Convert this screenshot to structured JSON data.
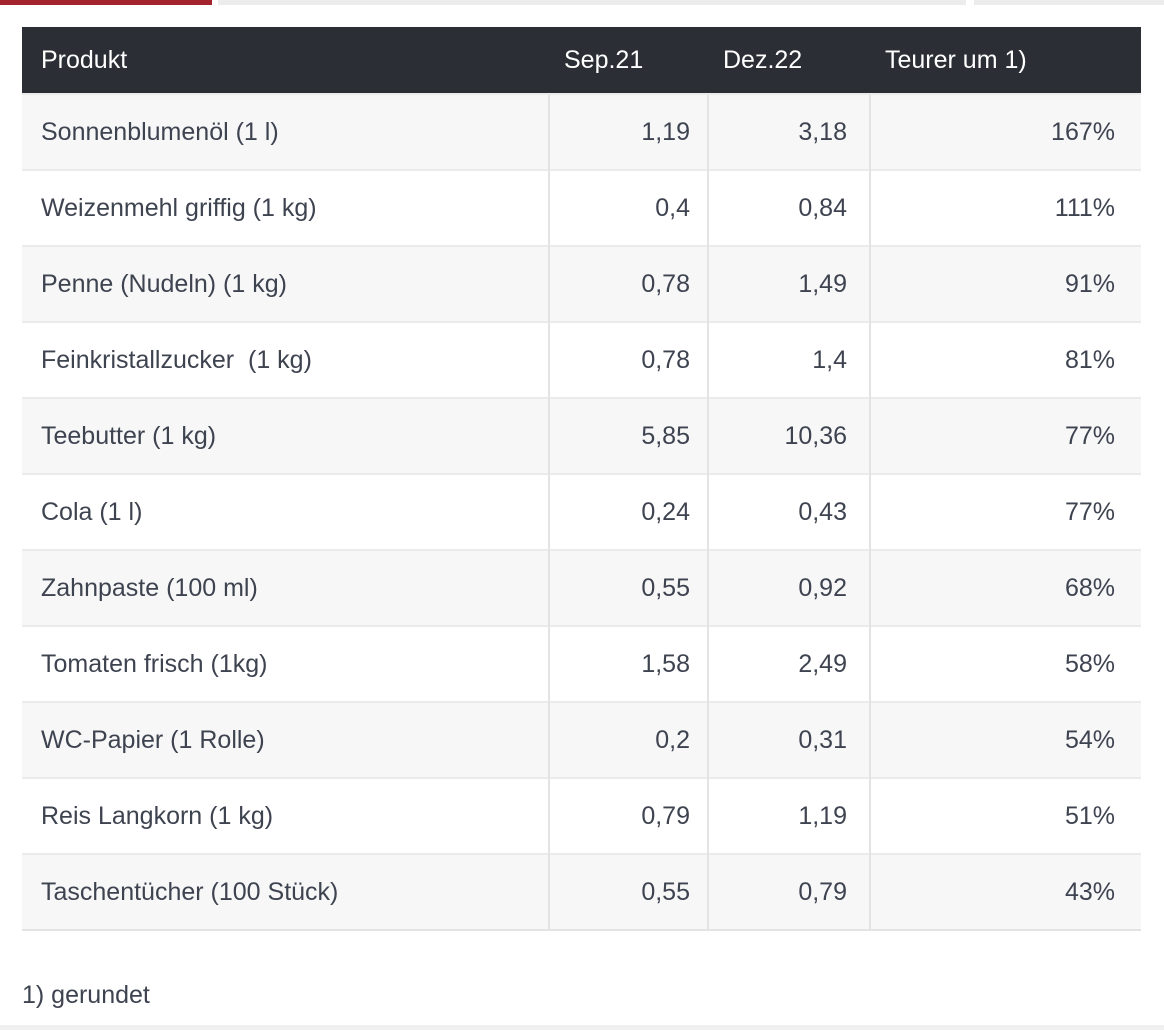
{
  "theme": {
    "accent_red": "#a3242c",
    "header_bg": "#2b2e34",
    "header_text": "#ffffff",
    "body_text": "#3e4350",
    "stripe_bg": "#f7f7f8",
    "divider": "#e3e3e5"
  },
  "chart_data": {
    "type": "table",
    "columns": [
      "Produkt",
      "Sep.21",
      "Dez.22",
      "Teurer um 1)"
    ],
    "rows": [
      [
        "Sonnenblumenöl (1 l)",
        "1,19",
        "3,18",
        "167%"
      ],
      [
        "Weizenmehl griffig (1 kg)",
        "0,4",
        "0,84",
        "111%"
      ],
      [
        "Penne (Nudeln) (1 kg)",
        "0,78",
        "1,49",
        "91%"
      ],
      [
        "Feinkristallzucker  (1 kg)",
        "0,78",
        "1,4",
        "81%"
      ],
      [
        "Teebutter (1 kg)",
        "5,85",
        "10,36",
        "77%"
      ],
      [
        "Cola (1 l)",
        "0,24",
        "0,43",
        "77%"
      ],
      [
        "Zahnpaste (100 ml)",
        "0,55",
        "0,92",
        "68%"
      ],
      [
        "Tomaten frisch (1kg)",
        "1,58",
        "2,49",
        "58%"
      ],
      [
        "WC-Papier (1 Rolle)",
        "0,2",
        "0,31",
        "54%"
      ],
      [
        "Reis Langkorn (1 kg)",
        "0,79",
        "1,19",
        "51%"
      ],
      [
        "Taschentücher (100 Stück)",
        "0,55",
        "0,79",
        "43%"
      ]
    ],
    "footnote": "1) gerundet"
  }
}
